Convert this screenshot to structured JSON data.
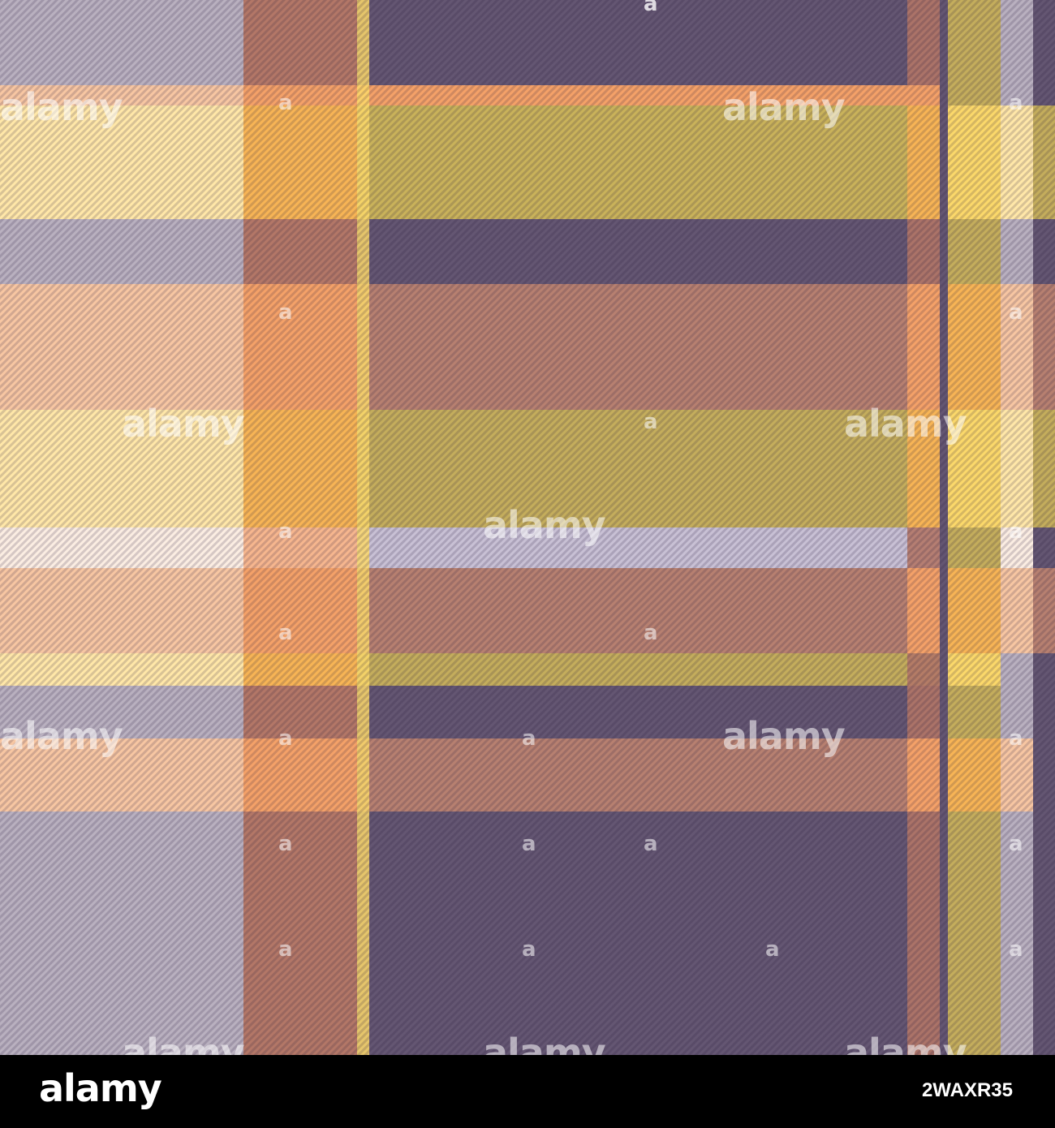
{
  "image": {
    "subject": "plaid-tartan-pattern",
    "colors": {
      "purple": "#645672",
      "lavender": "#b9b0bf",
      "orange": "#f4a168",
      "yellow": "#fbd86a",
      "cream": "#ffe7a8",
      "peach": "#f7c6a2",
      "off_white": "#fbede2",
      "footer_bg": "#000000",
      "footer_text": "#ffffff"
    }
  },
  "watermark": {
    "word": "alamy",
    "glyph": "a"
  },
  "footer": {
    "logo": "alamy",
    "image_code": "2WAXR35"
  }
}
